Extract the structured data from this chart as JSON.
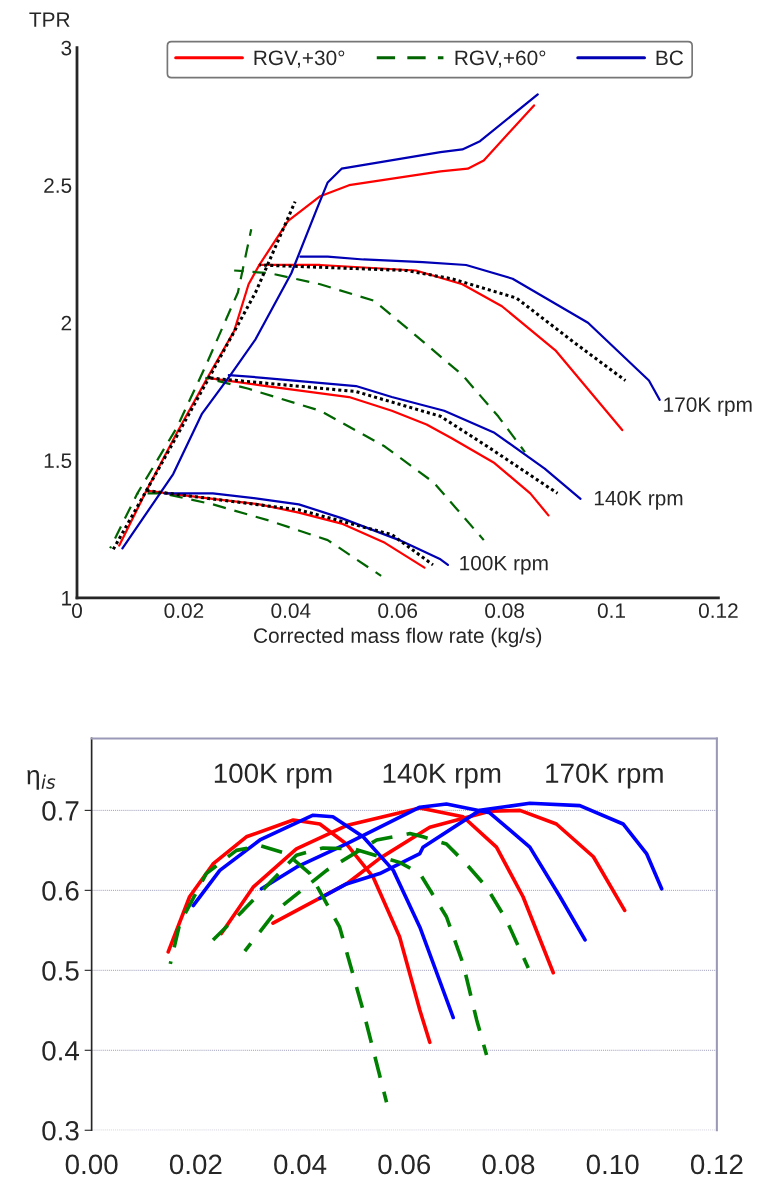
{
  "chart_data": [
    {
      "type": "line",
      "ylabel": "TPR",
      "xlabel": "Corrected mass flow rate (kg/s)",
      "xlim": [
        0,
        0.12
      ],
      "ylim": [
        1,
        3
      ],
      "xticks": [
        0,
        0.02,
        0.04,
        0.06,
        0.08,
        0.1,
        0.12
      ],
      "yticks": [
        1,
        1.5,
        2,
        2.5,
        3
      ],
      "grid": false,
      "legend": "top",
      "marker": "none",
      "series": [
        {
          "name": "RGV,+30°",
          "color": "#ff0000",
          "line_style": "solid",
          "x": [
            0.0079,
            0.013,
            0.0187,
            0.0244,
            0.0294,
            0.0321,
            0.0341,
            0.0395,
            0.0455,
            0.0509,
            0.068,
            0.0731,
            0.0761,
            0.0855
          ],
          "values": [
            1.19,
            1.39,
            1.6,
            1.8,
            1.97,
            2.14,
            2.21,
            2.37,
            2.46,
            2.5,
            2.55,
            2.56,
            2.59,
            2.79
          ]
        },
        {
          "color": "#ff0000",
          "line_style": "solid",
          "x": [
            0.013,
            0.0254,
            0.0341,
            0.0415,
            0.0495,
            0.0576,
            0.065
          ],
          "values": [
            1.39,
            1.36,
            1.34,
            1.31,
            1.27,
            1.2,
            1.11
          ]
        },
        {
          "color": "#ff0000",
          "line_style": "solid",
          "x": [
            0.0244,
            0.0354,
            0.0509,
            0.0589,
            0.0654,
            0.0701,
            0.0781,
            0.0848,
            0.0882
          ],
          "values": [
            1.8,
            1.77,
            1.73,
            1.68,
            1.63,
            1.58,
            1.49,
            1.38,
            1.3
          ]
        },
        {
          "color": "#ff0000",
          "line_style": "solid",
          "x": [
            0.0341,
            0.0455,
            0.0634,
            0.0721,
            0.0795,
            0.0895,
            0.102
          ],
          "values": [
            2.21,
            2.21,
            2.19,
            2.14,
            2.06,
            1.9,
            1.61
          ]
        },
        {
          "name": "RGV,+60°",
          "color": "#006400",
          "line_style": "dashed",
          "x": [
            0.0062,
            0.0113,
            0.0187,
            0.024,
            0.0301,
            0.0326
          ],
          "values": [
            1.18,
            1.38,
            1.62,
            1.84,
            2.11,
            2.34
          ]
        },
        {
          "color": "#006400",
          "line_style": "dashed",
          "x": [
            0.0113,
            0.016,
            0.0254,
            0.0361,
            0.0469,
            0.0569
          ],
          "values": [
            1.38,
            1.38,
            1.34,
            1.28,
            1.21,
            1.08
          ]
        },
        {
          "color": "#006400",
          "line_style": "dashed",
          "x": [
            0.024,
            0.0321,
            0.0455,
            0.0576,
            0.0667,
            0.0761
          ],
          "values": [
            1.8,
            1.76,
            1.68,
            1.55,
            1.42,
            1.21
          ]
        },
        {
          "color": "#006400",
          "line_style": "dashed",
          "x": [
            0.0294,
            0.0361,
            0.0455,
            0.0556,
            0.0624,
            0.0721,
            0.0788,
            0.0838
          ],
          "values": [
            2.19,
            2.18,
            2.14,
            2.08,
            1.97,
            1.81,
            1.66,
            1.53
          ]
        },
        {
          "name": "BC",
          "color": "#0000b4",
          "line_style": "solid",
          "x": [
            0.0085,
            0.018,
            0.0234,
            0.0287,
            0.0334,
            0.0401,
            0.0448,
            0.0469,
            0.0495,
            0.068,
            0.0721,
            0.0754,
            0.0862
          ],
          "values": [
            1.18,
            1.45,
            1.67,
            1.81,
            1.94,
            2.18,
            2.41,
            2.51,
            2.56,
            2.62,
            2.63,
            2.66,
            2.83
          ]
        },
        {
          "color": "#0000b4",
          "line_style": "solid",
          "x": [
            0.0163,
            0.0254,
            0.0341,
            0.0415,
            0.0495,
            0.0603,
            0.068,
            0.0694
          ],
          "values": [
            1.38,
            1.38,
            1.36,
            1.34,
            1.29,
            1.21,
            1.14,
            1.12
          ]
        },
        {
          "color": "#0000b4",
          "line_style": "solid",
          "x": [
            0.0284,
            0.0348,
            0.0522,
            0.0589,
            0.0687,
            0.0781,
            0.0875,
            0.0942
          ],
          "values": [
            1.81,
            1.8,
            1.77,
            1.73,
            1.68,
            1.6,
            1.47,
            1.36
          ]
        },
        {
          "color": "#0000b4",
          "line_style": "solid",
          "x": [
            0.0418,
            0.0469,
            0.0536,
            0.0647,
            0.0728,
            0.0815,
            0.0956,
            0.107,
            0.109
          ],
          "values": [
            2.24,
            2.24,
            2.23,
            2.22,
            2.21,
            2.16,
            2.0,
            1.79,
            1.72
          ]
        },
        {
          "color": "#000000",
          "line_style": "dotted",
          "x": [
            0.0066,
            0.0153,
            0.0247,
            0.0334,
            0.0408
          ],
          "values": [
            1.17,
            1.47,
            1.8,
            2.11,
            2.44
          ]
        },
        {
          "color": "#000000",
          "line_style": "dotted",
          "x": [
            0.013,
            0.0415,
            0.0589,
            0.0666
          ],
          "values": [
            1.39,
            1.32,
            1.23,
            1.12
          ]
        },
        {
          "color": "#000000",
          "line_style": "dotted",
          "x": [
            0.0244,
            0.0522,
            0.068,
            0.0768,
            0.0899
          ],
          "values": [
            1.8,
            1.75,
            1.66,
            1.55,
            1.38
          ]
        },
        {
          "color": "#000000",
          "line_style": "dotted",
          "x": [
            0.0341,
            0.0616,
            0.0701,
            0.0822,
            0.0929,
            0.1026
          ],
          "values": [
            2.21,
            2.19,
            2.16,
            2.09,
            1.93,
            1.79
          ]
        }
      ],
      "annotations": [
        "170K rpm",
        "140K rpm",
        "100K rpm"
      ]
    },
    {
      "type": "line",
      "ylabel": "η$_{is}$",
      "xlim": [
        0,
        0.12
      ],
      "ylim": [
        0.3,
        0.79
      ],
      "xticks": [
        {
          "value": 0,
          "label": "0.00"
        },
        {
          "value": 0.02,
          "label": "0.02"
        },
        {
          "value": 0.04,
          "label": "0.04"
        },
        {
          "value": 0.06,
          "label": "0.06"
        },
        {
          "value": 0.08,
          "label": "0.08"
        },
        {
          "value": 0.1,
          "label": "0.10"
        },
        {
          "value": 0.12,
          "label": "0.12"
        }
      ],
      "yticks": [
        0.3,
        0.4,
        0.5,
        0.6,
        0.7
      ],
      "grid": "y",
      "legend": false,
      "marker": "none",
      "series": [
        {
          "color": "#ff0000",
          "line_style": "solid",
          "x": [
            0.0147,
            0.0188,
            0.0233,
            0.0297,
            0.0387,
            0.0438,
            0.0489,
            0.054,
            0.0591,
            0.063,
            0.0649
          ],
          "values": [
            0.523,
            0.592,
            0.633,
            0.667,
            0.688,
            0.683,
            0.658,
            0.617,
            0.542,
            0.45,
            0.41
          ]
        },
        {
          "color": "#ff0000",
          "line_style": "solid",
          "x": [
            0.0249,
            0.031,
            0.0393,
            0.0489,
            0.063,
            0.0713,
            0.0777,
            0.0828,
            0.0886
          ],
          "values": [
            0.546,
            0.604,
            0.652,
            0.681,
            0.703,
            0.692,
            0.654,
            0.592,
            0.497
          ]
        },
        {
          "color": "#ff0000",
          "line_style": "solid",
          "x": [
            0.0348,
            0.0489,
            0.0553,
            0.0649,
            0.0764,
            0.0822,
            0.0892,
            0.0963,
            0.1023
          ],
          "values": [
            0.559,
            0.608,
            0.64,
            0.679,
            0.699,
            0.7,
            0.683,
            0.642,
            0.575
          ]
        },
        {
          "color": "#0000ff",
          "line_style": "solid",
          "x": [
            0.0195,
            0.0246,
            0.0323,
            0.0425,
            0.0463,
            0.0521,
            0.0579,
            0.063,
            0.0694
          ],
          "values": [
            0.581,
            0.625,
            0.663,
            0.694,
            0.692,
            0.667,
            0.625,
            0.554,
            0.441
          ]
        },
        {
          "color": "#0000ff",
          "line_style": "solid",
          "x": [
            0.0326,
            0.0393,
            0.0489,
            0.063,
            0.0681,
            0.0764,
            0.0841,
            0.0899,
            0.0947
          ],
          "values": [
            0.602,
            0.629,
            0.658,
            0.704,
            0.708,
            0.697,
            0.654,
            0.592,
            0.538
          ]
        },
        {
          "color": "#0000ff",
          "line_style": "solid",
          "x": [
            0.0438,
            0.0489,
            0.0553,
            0.063,
            0.0636,
            0.0745,
            0.0841,
            0.0937,
            0.102,
            0.1065,
            0.1094
          ],
          "values": [
            0.59,
            0.608,
            0.621,
            0.646,
            0.654,
            0.7,
            0.709,
            0.706,
            0.683,
            0.646,
            0.602
          ]
        },
        {
          "color": "#008000",
          "line_style": "dashed",
          "x": [
            0.0151,
            0.0169,
            0.022,
            0.0278,
            0.0323,
            0.0374,
            0.0419,
            0.0476,
            0.0521,
            0.0566
          ],
          "values": [
            0.508,
            0.558,
            0.621,
            0.65,
            0.656,
            0.646,
            0.621,
            0.554,
            0.45,
            0.335
          ]
        },
        {
          "color": "#008000",
          "line_style": "dashed",
          "x": [
            0.0233,
            0.0291,
            0.0393,
            0.0444,
            0.0502,
            0.0591,
            0.063,
            0.0681,
            0.0713,
            0.0739,
            0.0758
          ],
          "values": [
            0.538,
            0.575,
            0.644,
            0.653,
            0.652,
            0.635,
            0.621,
            0.567,
            0.508,
            0.438,
            0.394
          ]
        },
        {
          "color": "#008000",
          "line_style": "dashed",
          "x": [
            0.0294,
            0.0355,
            0.0451,
            0.0547,
            0.0611,
            0.0636,
            0.0681,
            0.0719,
            0.0758,
            0.0796,
            0.0838
          ],
          "values": [
            0.524,
            0.575,
            0.625,
            0.663,
            0.671,
            0.667,
            0.658,
            0.633,
            0.604,
            0.563,
            0.503
          ]
        }
      ],
      "annotations": [
        "100K rpm",
        "140K rpm",
        "170K rpm"
      ]
    }
  ]
}
